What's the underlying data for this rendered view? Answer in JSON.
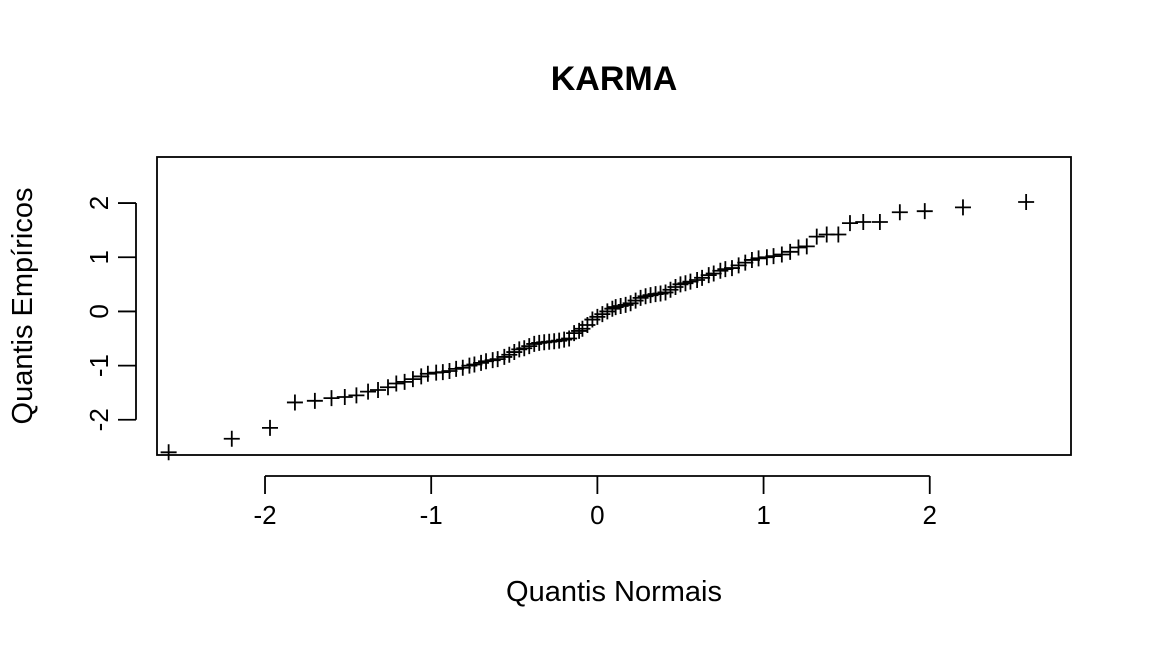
{
  "chart_data": {
    "type": "scatter",
    "title": "KARMA",
    "xlabel": "Quantis Normais",
    "ylabel": "Quantis Empíricos",
    "xlim": [
      -2.65,
      2.85
    ],
    "ylim": [
      -2.65,
      2.85
    ],
    "xticks": [
      -2,
      -1,
      0,
      1,
      2
    ],
    "yticks": [
      -2,
      -1,
      0,
      1,
      2
    ],
    "xtick_labels": [
      "-2",
      "-1",
      "0",
      "1",
      "2"
    ],
    "ytick_labels": [
      "-2",
      "-1",
      "0",
      "1",
      "2"
    ],
    "marker": "+",
    "grid": false,
    "x": [
      -2.58,
      -2.2,
      -1.97,
      -1.82,
      -1.7,
      -1.6,
      -1.52,
      -1.45,
      -1.38,
      -1.32,
      -1.26,
      -1.21,
      -1.16,
      -1.11,
      -1.06,
      -1.02,
      -0.97,
      -0.93,
      -0.89,
      -0.85,
      -0.81,
      -0.77,
      -0.74,
      -0.7,
      -0.67,
      -0.63,
      -0.6,
      -0.56,
      -0.53,
      -0.5,
      -0.47,
      -0.44,
      -0.41,
      -0.38,
      -0.35,
      -0.32,
      -0.29,
      -0.26,
      -0.23,
      -0.2,
      -0.17,
      -0.14,
      -0.11,
      -0.09,
      -0.06,
      -0.03,
      0.0,
      0.03,
      0.06,
      0.09,
      0.11,
      0.14,
      0.17,
      0.2,
      0.23,
      0.26,
      0.29,
      0.32,
      0.35,
      0.38,
      0.41,
      0.44,
      0.47,
      0.5,
      0.53,
      0.56,
      0.6,
      0.63,
      0.67,
      0.7,
      0.74,
      0.77,
      0.81,
      0.85,
      0.89,
      0.93,
      0.97,
      1.02,
      1.06,
      1.11,
      1.16,
      1.21,
      1.26,
      1.32,
      1.38,
      1.45,
      1.52,
      1.6,
      1.7,
      1.82,
      1.97,
      2.2,
      2.58
    ],
    "y": [
      -2.6,
      -2.35,
      -2.15,
      -1.68,
      -1.65,
      -1.6,
      -1.58,
      -1.55,
      -1.48,
      -1.45,
      -1.4,
      -1.33,
      -1.3,
      -1.25,
      -1.2,
      -1.15,
      -1.13,
      -1.12,
      -1.1,
      -1.06,
      -1.04,
      -1.0,
      -0.98,
      -0.95,
      -0.92,
      -0.9,
      -0.88,
      -0.84,
      -0.8,
      -0.75,
      -0.7,
      -0.68,
      -0.64,
      -0.6,
      -0.58,
      -0.57,
      -0.56,
      -0.55,
      -0.54,
      -0.52,
      -0.5,
      -0.4,
      -0.36,
      -0.32,
      -0.25,
      -0.15,
      -0.1,
      -0.05,
      0.0,
      0.05,
      0.08,
      0.1,
      0.12,
      0.15,
      0.2,
      0.25,
      0.28,
      0.3,
      0.32,
      0.33,
      0.35,
      0.4,
      0.45,
      0.5,
      0.52,
      0.55,
      0.58,
      0.62,
      0.67,
      0.7,
      0.75,
      0.78,
      0.8,
      0.85,
      0.9,
      0.95,
      0.98,
      1.0,
      1.02,
      1.05,
      1.1,
      1.18,
      1.2,
      1.38,
      1.42,
      1.42,
      1.63,
      1.65,
      1.65,
      1.83,
      1.85,
      1.92,
      2.02
    ]
  }
}
